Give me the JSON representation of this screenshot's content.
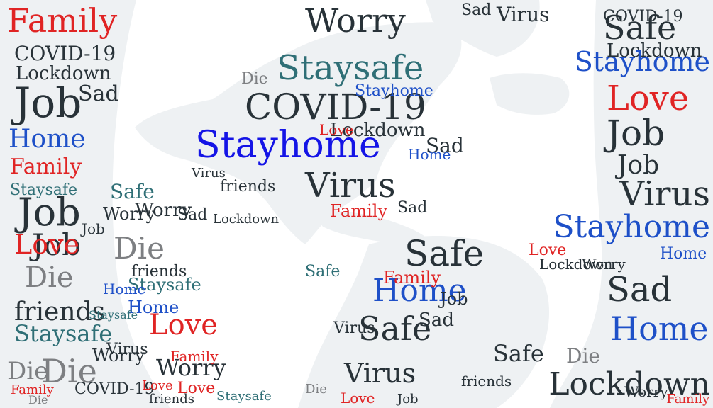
{
  "colors": {
    "background": "#ffffff",
    "land": "#eef1f3",
    "blue": "#1e50c8",
    "bright_blue": "#1414e6",
    "red": "#e02424",
    "teal": "#2f6f76",
    "dark": "#283238",
    "grey": "#7d7f82"
  },
  "vocabulary": [
    "Family",
    "Home",
    "Job",
    "Sad",
    "Die",
    "COVID-19",
    "Lockdown",
    "Love",
    "Virus",
    "friends",
    "Worry",
    "Stayhome",
    "Staysafe",
    "Safe"
  ],
  "words": [
    {
      "text": "Family",
      "color": "red"
    },
    {
      "text": "Job",
      "color": "dark"
    },
    {
      "text": "COVID-19",
      "color": "dark"
    },
    {
      "text": "Lockdown",
      "color": "dark"
    },
    {
      "text": "Sad",
      "color": "dark"
    },
    {
      "text": "Job",
      "color": "dark"
    },
    {
      "text": "Home",
      "color": "blue"
    },
    {
      "text": "Family",
      "color": "red"
    },
    {
      "text": "Staysafe",
      "color": "teal"
    },
    {
      "text": "Safe",
      "color": "teal"
    },
    {
      "text": "Job",
      "color": "dark"
    },
    {
      "text": "Worry",
      "color": "dark"
    },
    {
      "text": "Love",
      "color": "red"
    },
    {
      "text": "Die",
      "color": "grey"
    },
    {
      "text": "Die",
      "color": "grey"
    },
    {
      "text": "friends",
      "color": "dark"
    },
    {
      "text": "Staysafe",
      "color": "teal"
    },
    {
      "text": "Love",
      "color": "red"
    },
    {
      "text": "Die",
      "color": "grey"
    },
    {
      "text": "Die",
      "color": "grey"
    },
    {
      "text": "Worry",
      "color": "dark"
    },
    {
      "text": "COVID-19",
      "color": "dark"
    },
    {
      "text": "Family",
      "color": "red"
    },
    {
      "text": "Home",
      "color": "blue"
    },
    {
      "text": "friends",
      "color": "dark"
    },
    {
      "text": "Staysafe",
      "color": "teal"
    },
    {
      "text": "Worry",
      "color": "dark"
    },
    {
      "text": "Die",
      "color": "grey"
    },
    {
      "text": "Staysafe",
      "color": "teal"
    },
    {
      "text": "COVID-19",
      "color": "dark"
    },
    {
      "text": "Stayhome",
      "color": "bright_blue"
    },
    {
      "text": "Lockdown",
      "color": "dark"
    },
    {
      "text": "Love",
      "color": "red"
    },
    {
      "text": "Virus",
      "color": "dark"
    },
    {
      "text": "Family",
      "color": "red"
    },
    {
      "text": "Worry",
      "color": "dark"
    },
    {
      "text": "Safe",
      "color": "dark"
    },
    {
      "text": "Stayhome",
      "color": "blue"
    },
    {
      "text": "Lockdown",
      "color": "dark"
    },
    {
      "text": "Love",
      "color": "red"
    },
    {
      "text": "Job",
      "color": "dark"
    },
    {
      "text": "Job",
      "color": "dark"
    },
    {
      "text": "Virus",
      "color": "dark"
    },
    {
      "text": "Stayhome",
      "color": "blue"
    },
    {
      "text": "Sad",
      "color": "dark"
    },
    {
      "text": "Home",
      "color": "blue"
    },
    {
      "text": "Die",
      "color": "grey"
    },
    {
      "text": "Lockdown",
      "color": "dark"
    },
    {
      "text": "Safe",
      "color": "dark"
    },
    {
      "text": "Home",
      "color": "blue"
    },
    {
      "text": "Safe",
      "color": "dark"
    },
    {
      "text": "Sad",
      "color": "dark"
    },
    {
      "text": "Virus",
      "color": "dark"
    },
    {
      "text": "Safe",
      "color": "dark"
    },
    {
      "text": "Sad",
      "color": "dark"
    },
    {
      "text": "Stayhome",
      "color": "blue"
    },
    {
      "text": "Virus",
      "color": "dark"
    },
    {
      "text": "Sad",
      "color": "dark"
    },
    {
      "text": "COVID-19",
      "color": "dark"
    },
    {
      "text": "friends",
      "color": "dark"
    },
    {
      "text": "Worry",
      "color": "dark"
    },
    {
      "text": "Lockdown",
      "color": "dark"
    },
    {
      "text": "Love",
      "color": "red"
    },
    {
      "text": "Home",
      "color": "blue"
    },
    {
      "text": "Family",
      "color": "red"
    },
    {
      "text": "Job",
      "color": "dark"
    },
    {
      "text": "Virus",
      "color": "dark"
    },
    {
      "text": "Safe",
      "color": "teal"
    },
    {
      "text": "Die",
      "color": "grey"
    },
    {
      "text": "Love",
      "color": "red"
    },
    {
      "text": "Worry",
      "color": "dark"
    },
    {
      "text": "Family",
      "color": "red"
    },
    {
      "text": "Love",
      "color": "red"
    },
    {
      "text": "Sad",
      "color": "dark"
    },
    {
      "text": "Job",
      "color": "dark"
    },
    {
      "text": "Home",
      "color": "blue"
    },
    {
      "text": "Virus",
      "color": "dark"
    },
    {
      "text": "Staysafe",
      "color": "teal"
    },
    {
      "text": "Sad",
      "color": "dark"
    },
    {
      "text": "Love",
      "color": "red"
    },
    {
      "text": "Job",
      "color": "dark"
    },
    {
      "text": "Virus",
      "color": "dark"
    },
    {
      "text": "friends",
      "color": "dark"
    },
    {
      "text": "Die",
      "color": "grey"
    },
    {
      "text": "Worry",
      "color": "dark"
    },
    {
      "text": "Family",
      "color": "red"
    },
    {
      "text": "Home",
      "color": "blue"
    },
    {
      "text": "Lockdown",
      "color": "dark"
    },
    {
      "text": "friends",
      "color": "dark"
    },
    {
      "text": "Staysafe",
      "color": "teal"
    }
  ]
}
